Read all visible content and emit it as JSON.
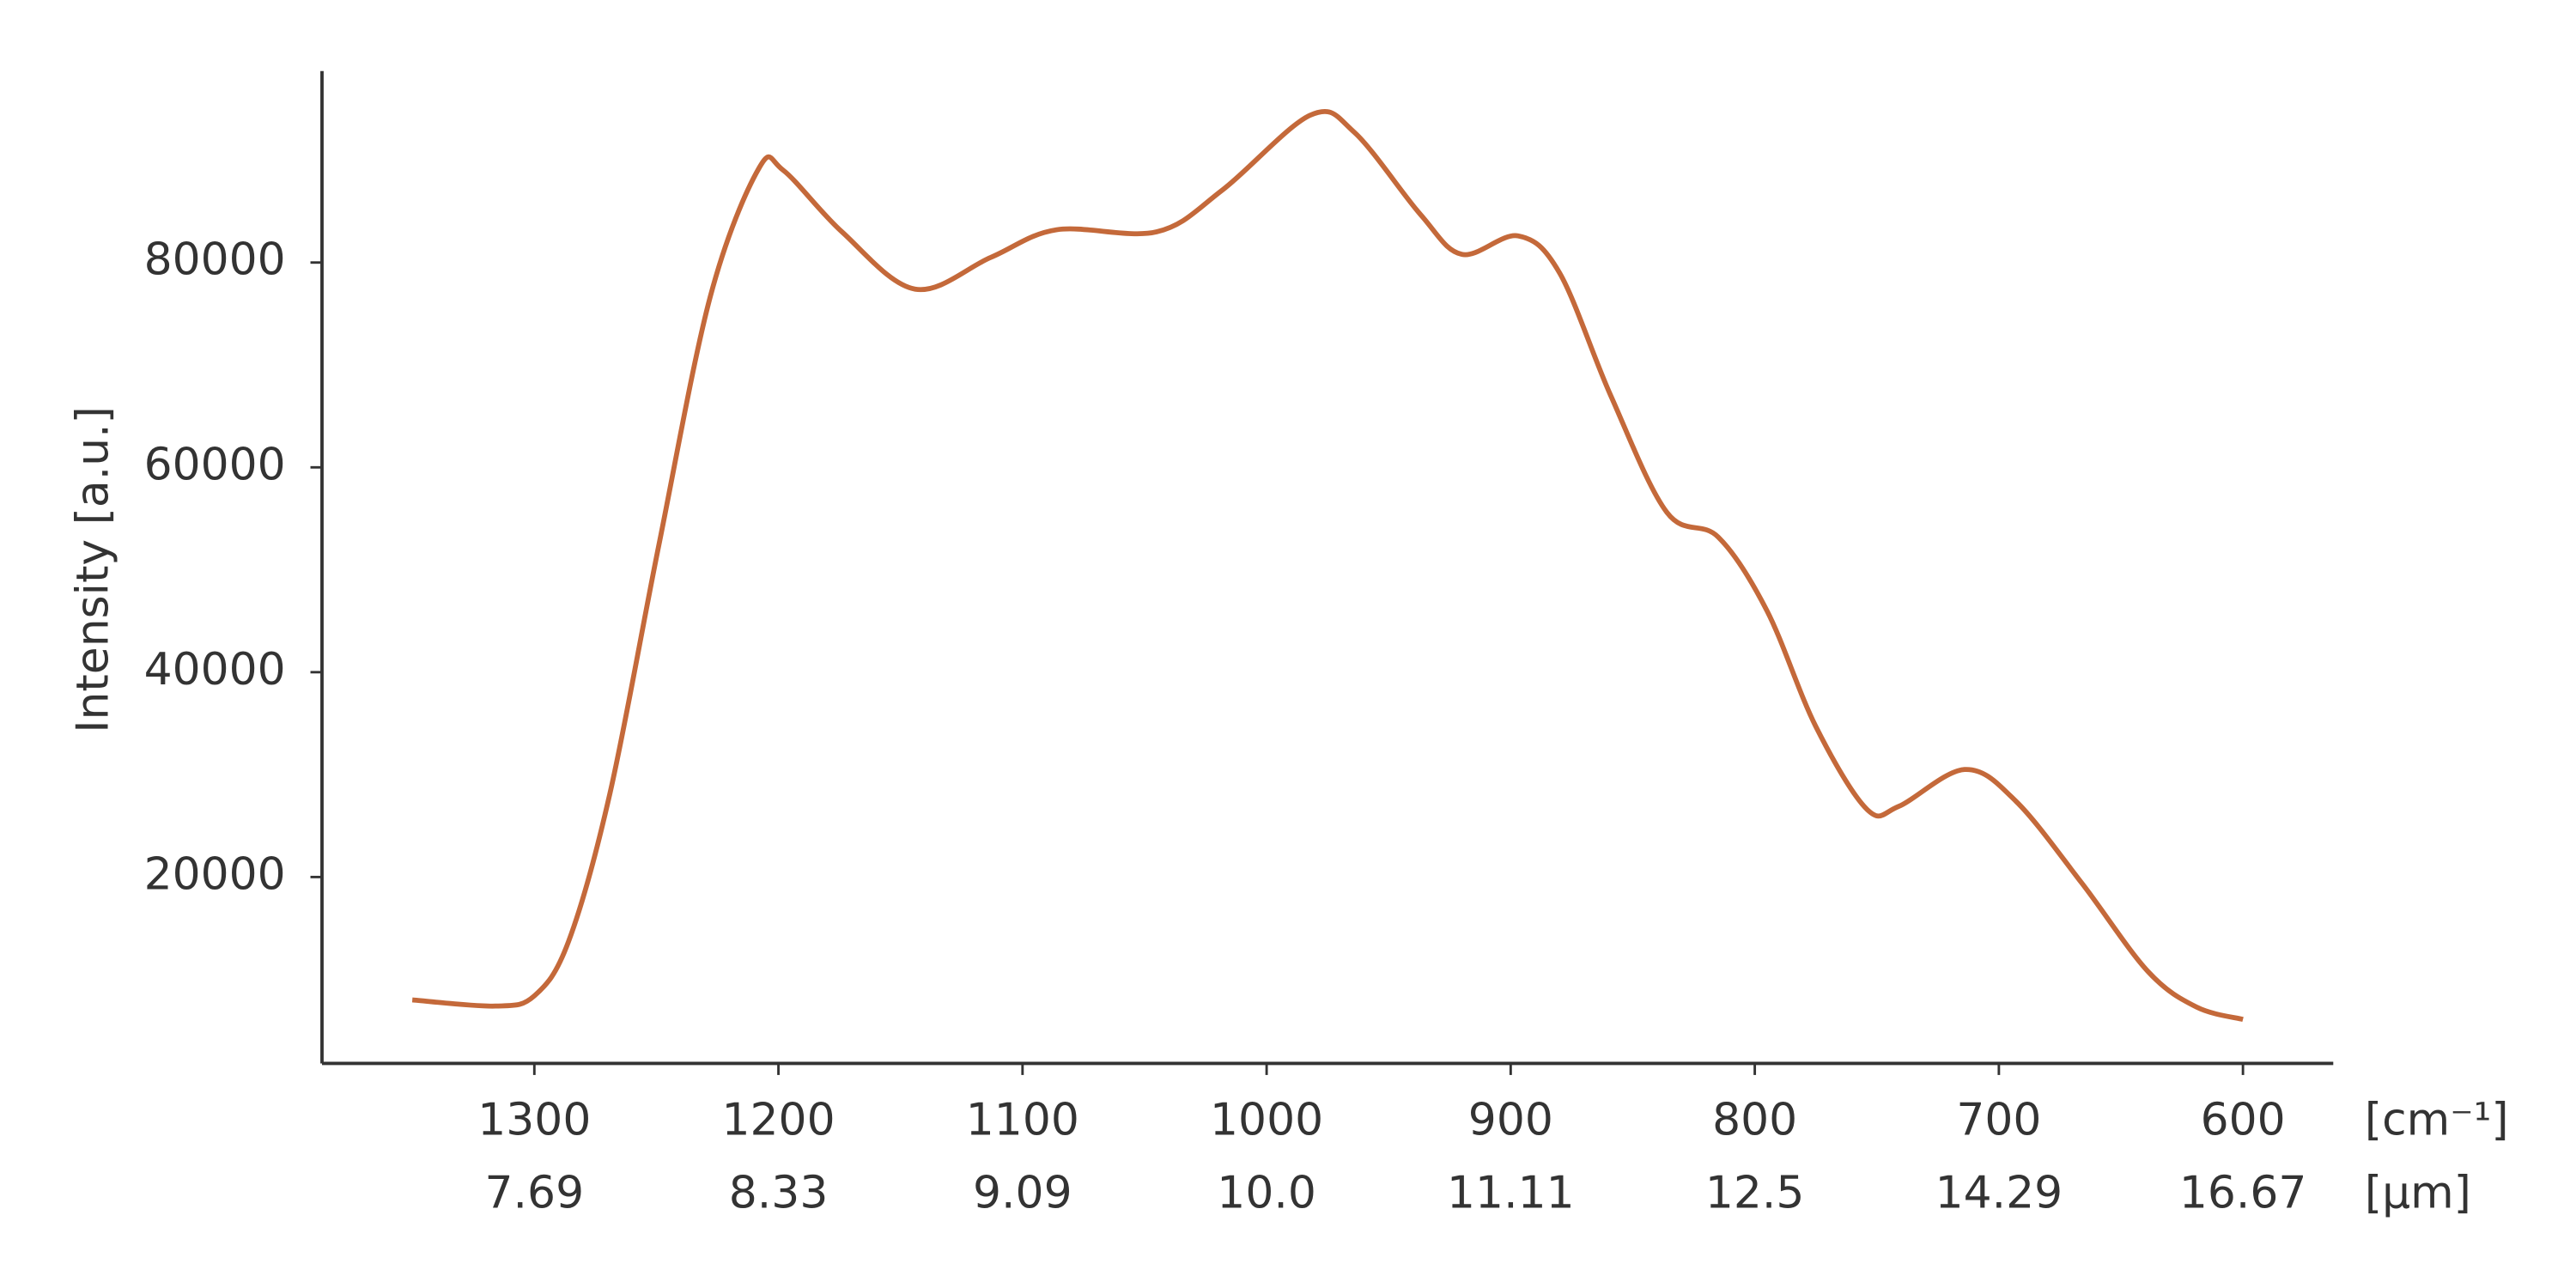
{
  "chart_data": {
    "type": "line",
    "ylabel": "Intensity [a.u.]",
    "x_unit": "[cm⁻¹]",
    "x2_unit": "[µm]",
    "x": [
      1350,
      1316,
      1300,
      1286,
      1269,
      1249,
      1228,
      1208,
      1198,
      1174,
      1144,
      1113,
      1086,
      1045,
      1018,
      982,
      964,
      937,
      920,
      897,
      880,
      859,
      836,
      815,
      795,
      775,
      754,
      741,
      714,
      693,
      666,
      639,
      619,
      600
    ],
    "values": [
      8000,
      7400,
      8400,
      13700,
      28200,
      52400,
      76600,
      89200,
      89000,
      83000,
      77400,
      80500,
      83200,
      83000,
      87100,
      94400,
      92700,
      84700,
      80800,
      82600,
      79000,
      67000,
      55600,
      53200,
      46000,
      34700,
      26600,
      26900,
      30500,
      27400,
      19400,
      10800,
      7300,
      6100
    ],
    "color": "#c4693a",
    "xlim": [
      1387,
      563
    ],
    "ylim": [
      1800,
      98700
    ],
    "xticks": [
      1300,
      1200,
      1100,
      1000,
      900,
      800,
      700,
      600
    ],
    "x2ticklabels": [
      7.69,
      8.33,
      9.09,
      {
        "value": 10,
        "label": "10.0"
      },
      11.11,
      12.5,
      14.29,
      16.67
    ],
    "yticks": [
      20000,
      40000,
      60000,
      80000
    ]
  }
}
